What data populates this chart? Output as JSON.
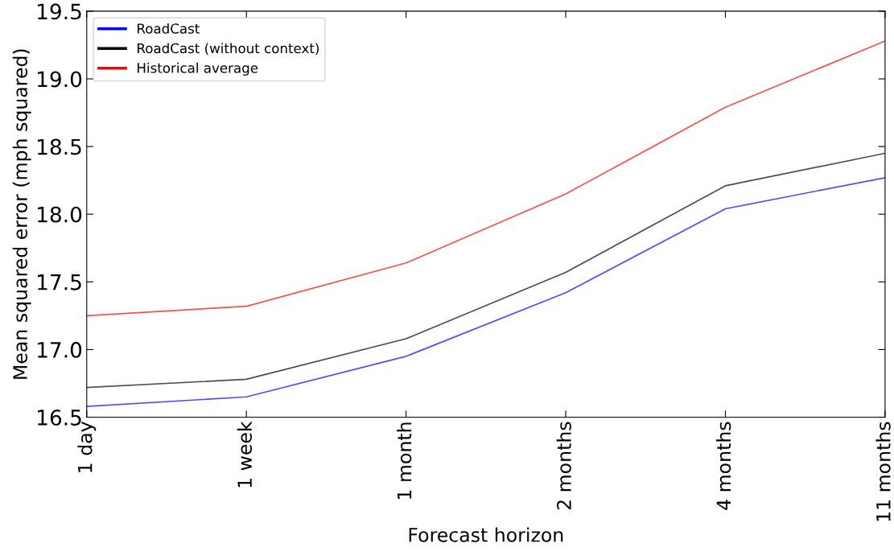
{
  "chart_data": {
    "type": "line",
    "xlabel": "Forecast horizon",
    "ylabel": "Mean squared error (mph squared)",
    "categories": [
      "1 day",
      "1 week",
      "1 month",
      "2 months",
      "4 months",
      "11 months"
    ],
    "series": [
      {
        "name": "RoadCast",
        "color": "#0000ff",
        "values": [
          16.58,
          16.65,
          16.95,
          17.42,
          18.04,
          18.27
        ]
      },
      {
        "name": "RoadCast (without context)",
        "color": "#000000",
        "values": [
          16.72,
          16.78,
          17.08,
          17.57,
          18.21,
          18.45
        ]
      },
      {
        "name": "Historical average",
        "color": "#ff0000",
        "values": [
          17.25,
          17.32,
          17.64,
          18.15,
          18.79,
          19.28
        ]
      }
    ],
    "ylim": [
      16.5,
      19.5
    ],
    "yticks": [
      16.5,
      {
        "value": 17,
        "label": "17.0"
      },
      17.5,
      {
        "value": 18,
        "label": "18.0"
      },
      18.5,
      {
        "value": 19,
        "label": "19.0"
      },
      19.5
    ],
    "legend": "top left",
    "grid": false,
    "marker": "none",
    "line_style": "solid"
  }
}
